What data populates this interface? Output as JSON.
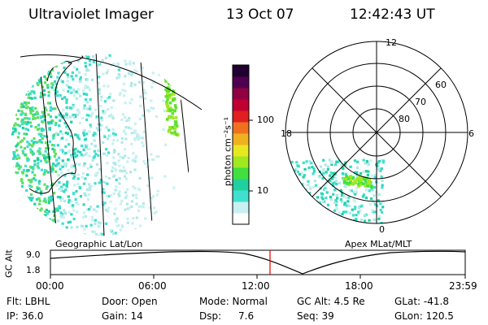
{
  "header": {
    "instrument": "Ultraviolet Imager",
    "date": "13 Oct 07",
    "time": "12:42:43 UT"
  },
  "colorbar": {
    "unit_label": "photon cm⁻²s⁻¹",
    "ticks": [
      {
        "label": "100",
        "value": 100
      },
      {
        "label": "10",
        "value": 10
      }
    ],
    "colors": [
      "#ffffff",
      "#c8f0f0",
      "#40e0d0",
      "#20d0a0",
      "#40e040",
      "#a0e820",
      "#e8e820",
      "#f0b020",
      "#f07020",
      "#e02020",
      "#c00030",
      "#900040",
      "#500050",
      "#200030"
    ]
  },
  "left_panel": {
    "caption": "Geographic Lat/Lon"
  },
  "right_panel": {
    "caption": "Apex MLat/MLT",
    "mlt_labels": {
      "top": "12",
      "left": "18",
      "right": "6",
      "bottom": "0"
    },
    "lat_labels": [
      "60",
      "70",
      "80"
    ]
  },
  "altitude_plot": {
    "ylabel": "GC Alt",
    "yticks": [
      "9.0",
      "1.8"
    ],
    "xticks": [
      "00:00",
      "06:00",
      "12:00",
      "18:00",
      "23:59"
    ],
    "current_time_marker": "12:42",
    "marker_color": "#e00000"
  },
  "footer": {
    "flt": "Flt: LBHL",
    "ip": "IP: 36.0",
    "door": "Door: Open",
    "gain": "Gain: 14",
    "mode": "Mode: Normal",
    "dsp_label": "Dsp:",
    "dsp_value": "7.6",
    "gc_alt": "GC Alt: 4.5 Re",
    "seq": "Seq: 39",
    "glat": "GLat: -41.8",
    "glon": "GLon: 120.5"
  }
}
